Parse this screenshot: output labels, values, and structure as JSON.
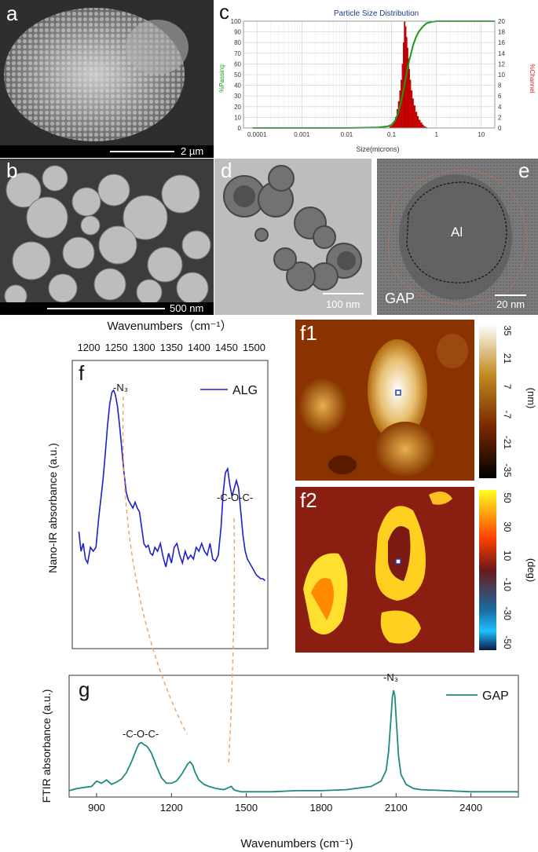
{
  "panels": {
    "a": {
      "label": "a",
      "scalebar": "2 µm"
    },
    "b": {
      "label": "b",
      "scalebar": "500 nm"
    },
    "c": {
      "label": "c"
    },
    "d": {
      "label": "d",
      "scalebar": "100 nm"
    },
    "e": {
      "label": "e",
      "scalebar": "20 nm",
      "core_label": "Al",
      "shell_label": "GAP"
    },
    "f": {
      "label": "f"
    },
    "f1": {
      "label": "f1"
    },
    "f2": {
      "label": "f2"
    },
    "g": {
      "label": "g"
    }
  },
  "colors": {
    "psd_bar": "#e00000",
    "psd_line": "#1a9a1a",
    "nanoir_line": "#2020c8",
    "ftir_line": "#1f8a80",
    "guide_dash": "#f0a060",
    "f1_scale": [
      "#ffffff",
      "#c08a20",
      "#7a2a00",
      "#000000"
    ],
    "f2_scale": [
      "#ffff20",
      "#ff4000",
      "#6a1a1a",
      "#1a6aa0",
      "#20c0ff"
    ]
  },
  "chart_data": [
    {
      "id": "psd",
      "type": "bar",
      "title": "Particle Size Distribution",
      "xlabel": "Size(microns)",
      "ylabel": "%Passing",
      "ylabel_right": "%Channel",
      "xscale": "log",
      "xlim": [
        5e-05,
        20
      ],
      "ylim": [
        0,
        100
      ],
      "ylim_right": [
        0,
        20
      ],
      "xticks": [
        "0.0001",
        "0.001",
        "0.01",
        "0.1",
        "1",
        "10"
      ],
      "yticks_left": [
        "0",
        "10",
        "20",
        "30",
        "40",
        "50",
        "60",
        "70",
        "80",
        "90",
        "100"
      ],
      "yticks_right": [
        "0",
        "2",
        "4",
        "6",
        "8",
        "10",
        "12",
        "14",
        "16",
        "18",
        "20"
      ],
      "grid": true,
      "bars": {
        "x": [
          0.09,
          0.1,
          0.11,
          0.12,
          0.13,
          0.14,
          0.15,
          0.16,
          0.17,
          0.18,
          0.19,
          0.2,
          0.21,
          0.22,
          0.23,
          0.24,
          0.25,
          0.27,
          0.29,
          0.31,
          0.34,
          0.37,
          0.4,
          0.44,
          0.48,
          0.52,
          0.57
        ],
        "values": [
          0.3,
          0.6,
          1.2,
          2,
          3.5,
          5,
          7,
          9,
          12,
          16,
          20,
          19,
          17,
          15,
          13,
          11,
          9,
          7,
          5.5,
          4.2,
          3,
          2.2,
          1.5,
          1,
          0.6,
          0.3,
          0.1
        ]
      },
      "cumulative": {
        "x": [
          8e-05,
          0.01,
          0.05,
          0.08,
          0.1,
          0.12,
          0.14,
          0.16,
          0.18,
          0.2,
          0.22,
          0.25,
          0.3,
          0.35,
          0.4,
          0.5,
          0.6,
          0.8,
          1.0,
          10,
          20
        ],
        "values": [
          0,
          0,
          0.5,
          1.5,
          3,
          7,
          14,
          23,
          33,
          44,
          53,
          64,
          77,
          85,
          90,
          95,
          98,
          99.5,
          100,
          100,
          100
        ]
      }
    },
    {
      "id": "nanoir",
      "type": "line",
      "xlabel": "Wavenumbers（cm⁻¹）",
      "ylabel": "Nano-IR absorbance (a.u.)",
      "xlim": [
        1170,
        1525
      ],
      "ylim": [
        0,
        1.05
      ],
      "xticks": [
        "1200",
        "1250",
        "1300",
        "1350",
        "1400",
        "1450",
        "1500"
      ],
      "legend": "ALG",
      "legend_position": "top-right",
      "annotations": [
        "-N₃",
        "-C-O-C-"
      ],
      "series": [
        {
          "name": "ALG",
          "x": [
            1182,
            1186,
            1190,
            1194,
            1198,
            1203,
            1208,
            1213,
            1218,
            1222,
            1226,
            1230,
            1234,
            1238,
            1242,
            1245,
            1248,
            1252,
            1256,
            1260,
            1264,
            1268,
            1272,
            1276,
            1280,
            1284,
            1288,
            1292,
            1296,
            1300,
            1304,
            1308,
            1312,
            1316,
            1320,
            1325,
            1330,
            1335,
            1340,
            1345,
            1350,
            1355,
            1360,
            1365,
            1370,
            1375,
            1380,
            1385,
            1390,
            1395,
            1400,
            1405,
            1410,
            1415,
            1420,
            1425,
            1430,
            1435,
            1440,
            1444,
            1448,
            1452,
            1456,
            1460,
            1464,
            1468,
            1472,
            1476,
            1480,
            1484,
            1488,
            1492,
            1496,
            1500,
            1504,
            1508,
            1512,
            1516,
            1520
          ],
          "values": [
            0.28,
            0.18,
            0.22,
            0.14,
            0.12,
            0.2,
            0.18,
            0.2,
            0.35,
            0.45,
            0.55,
            0.68,
            0.82,
            0.93,
            0.99,
            1.0,
            0.98,
            0.92,
            0.82,
            0.7,
            0.58,
            0.48,
            0.44,
            0.42,
            0.4,
            0.43,
            0.4,
            0.38,
            0.3,
            0.22,
            0.2,
            0.21,
            0.17,
            0.16,
            0.2,
            0.18,
            0.22,
            0.15,
            0.1,
            0.17,
            0.12,
            0.2,
            0.22,
            0.16,
            0.12,
            0.18,
            0.14,
            0.16,
            0.14,
            0.2,
            0.18,
            0.22,
            0.18,
            0.16,
            0.22,
            0.14,
            0.13,
            0.16,
            0.3,
            0.48,
            0.58,
            0.6,
            0.52,
            0.46,
            0.5,
            0.54,
            0.5,
            0.38,
            0.26,
            0.18,
            0.14,
            0.12,
            0.1,
            0.08,
            0.06,
            0.05,
            0.04,
            0.04,
            0.03
          ]
        }
      ]
    },
    {
      "id": "ftir",
      "type": "line",
      "xlabel": "Wavenumbers (cm⁻¹)",
      "ylabel": "FTIR absorbance (a.u.)",
      "xlim": [
        790,
        2590
      ],
      "ylim": [
        0,
        1.05
      ],
      "xticks": [
        "900",
        "1200",
        "1500",
        "1800",
        "2100",
        "2400"
      ],
      "legend": "GAP",
      "legend_position": "top-right",
      "annotations": [
        "-C-O-C-",
        "-N₃"
      ],
      "series": [
        {
          "name": "GAP",
          "x": [
            790,
            820,
            850,
            880,
            900,
            920,
            940,
            960,
            980,
            1000,
            1020,
            1040,
            1060,
            1070,
            1080,
            1090,
            1100,
            1110,
            1120,
            1140,
            1160,
            1180,
            1200,
            1220,
            1240,
            1255,
            1265,
            1275,
            1285,
            1295,
            1310,
            1330,
            1350,
            1380,
            1410,
            1430,
            1440,
            1450,
            1460,
            1480,
            1500,
            1550,
            1600,
            1700,
            1800,
            1900,
            2000,
            2040,
            2060,
            2070,
            2080,
            2085,
            2090,
            2095,
            2100,
            2110,
            2120,
            2140,
            2170,
            2200,
            2300,
            2400,
            2500,
            2590
          ],
          "values": [
            0.03,
            0.05,
            0.06,
            0.07,
            0.12,
            0.1,
            0.13,
            0.09,
            0.11,
            0.14,
            0.2,
            0.3,
            0.42,
            0.47,
            0.48,
            0.46,
            0.45,
            0.42,
            0.38,
            0.26,
            0.15,
            0.1,
            0.1,
            0.12,
            0.18,
            0.24,
            0.28,
            0.3,
            0.27,
            0.2,
            0.13,
            0.09,
            0.07,
            0.05,
            0.04,
            0.06,
            0.07,
            0.04,
            0.03,
            0.02,
            0.02,
            0.02,
            0.02,
            0.03,
            0.03,
            0.04,
            0.07,
            0.12,
            0.22,
            0.4,
            0.72,
            0.9,
            0.97,
            0.92,
            0.72,
            0.35,
            0.18,
            0.09,
            0.05,
            0.04,
            0.03,
            0.02,
            0.02,
            0.02
          ]
        }
      ]
    },
    {
      "id": "f1-colorbar",
      "type": "heatmap",
      "ylabel": "(nm)",
      "ticks": [
        "35",
        "21",
        "7",
        "-7",
        "-21",
        "-35"
      ]
    },
    {
      "id": "f2-colorbar",
      "type": "heatmap",
      "ylabel": "(deg)",
      "ticks": [
        "50",
        "30",
        "10",
        "-10",
        "-30",
        "-50"
      ]
    }
  ]
}
